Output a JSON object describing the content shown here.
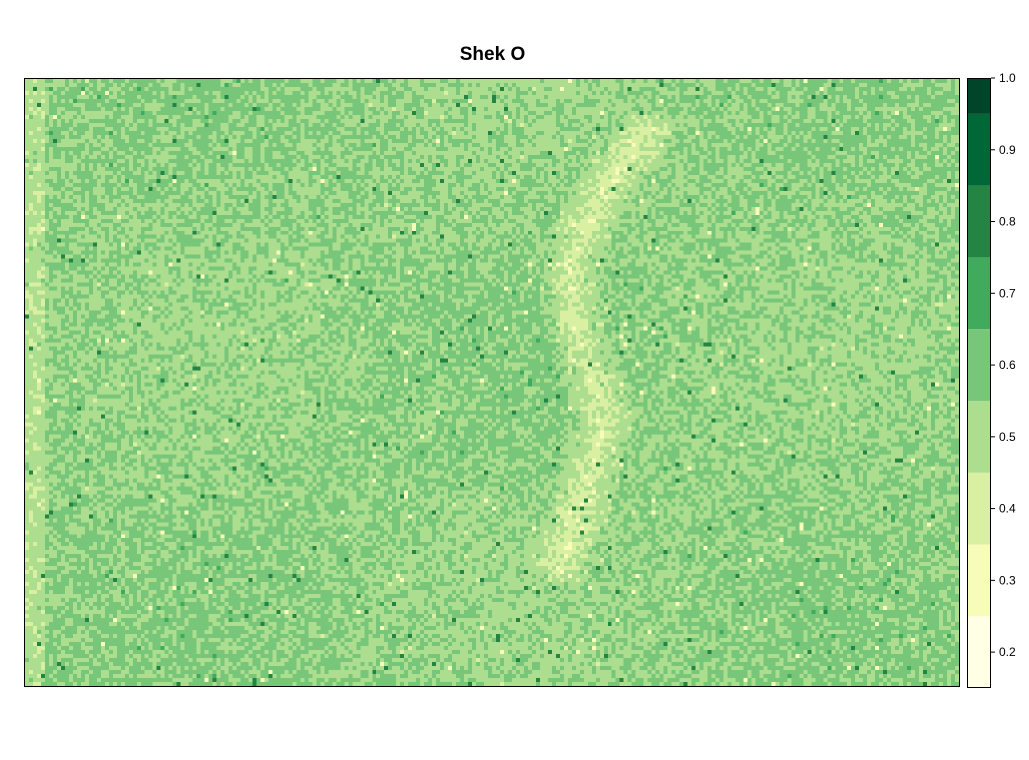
{
  "chart_data": {
    "type": "heatmap",
    "title": "Shek O",
    "xlabel": "",
    "ylabel": "",
    "value_range": [
      0.15,
      1.0
    ],
    "colorbar": {
      "breaks": [
        0.15,
        0.25,
        0.35,
        0.45,
        0.55,
        0.65,
        0.75,
        0.85,
        0.95,
        1.0
      ],
      "colors": [
        "#ffffe5",
        "#f7fcb9",
        "#d9f0a3",
        "#addd8e",
        "#78c679",
        "#41ab5d",
        "#238443",
        "#006837",
        "#004529"
      ],
      "ticks": [
        0.2,
        0.3,
        0.4,
        0.5,
        0.6,
        0.7,
        0.8,
        0.9,
        1.0
      ],
      "tick_labels": [
        "0.2",
        "0.3",
        "0.4",
        "0.5",
        "0.6",
        "0.7",
        "0.8",
        "0.9",
        "1.0"
      ],
      "position": "right"
    },
    "grid": false,
    "raster_summary": {
      "dominant_value": 0.55,
      "typical_range": [
        0.4,
        0.7
      ],
      "notes": "Noisy vegetation index field dominated by values ~0.5–0.6 with scattered higher (~0.65–0.75) pixels and lighter (~0.3–0.45) patches along a diagonal feature"
    }
  }
}
